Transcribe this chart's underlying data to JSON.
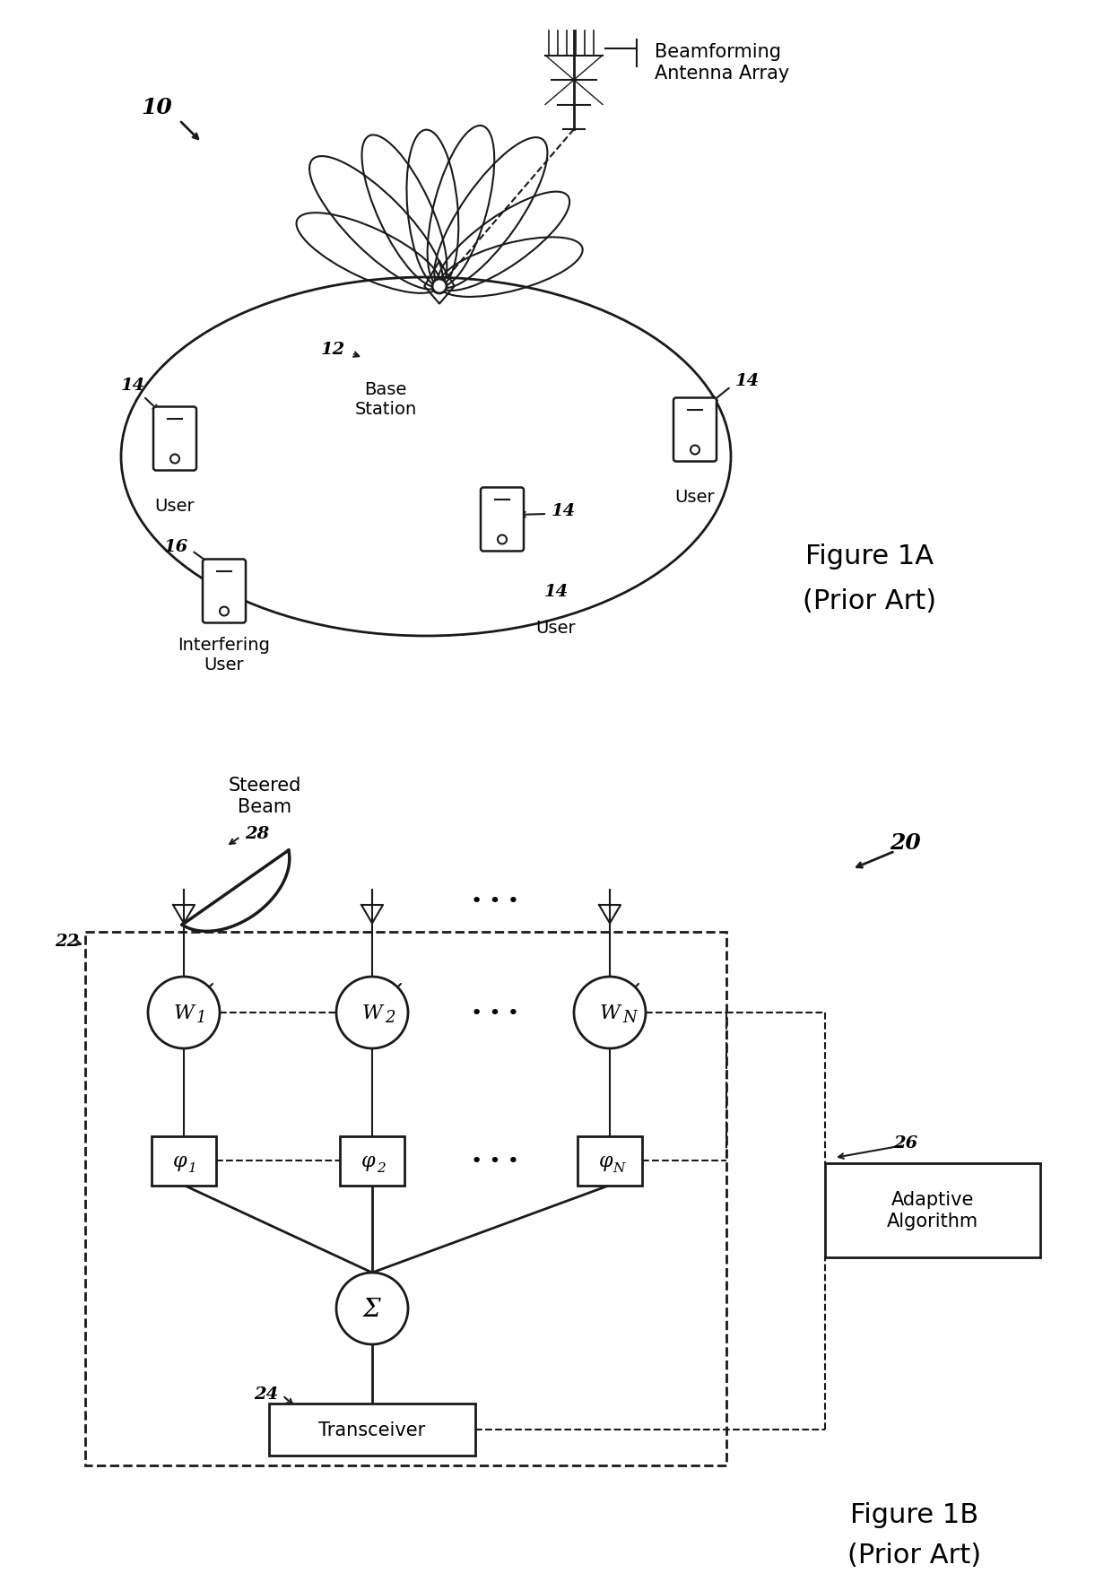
{
  "bg_color": "#ffffff",
  "line_color": "#1a1a1a",
  "fig_width": 12.4,
  "fig_height": 17.65,
  "fig1a_label": "10",
  "fig1a_title": "Figure 1A",
  "fig1a_subtitle": "(Prior Art)",
  "fig1b_title": "Figure 1B",
  "fig1b_subtitle": "(Prior Art)",
  "fig1b_label": "20",
  "label_12": "12",
  "label_14": "14",
  "label_16": "16",
  "label_22": "22",
  "label_24": "24",
  "label_26": "26",
  "label_28": "28",
  "text_base_station": "Base\nStation",
  "text_user": "User",
  "text_interfering_user": "Interfering\nUser",
  "text_beamforming": "Beamforming\nAntenna Array",
  "text_steered_beam": "Steered\nBeam",
  "text_transceiver": "Transceiver",
  "text_adaptive": "Adaptive\nAlgorithm",
  "text_w1": "W",
  "text_w2": "W",
  "text_wn": "W",
  "text_phi1": "φ",
  "text_phi2": "φ",
  "text_phin": "φ",
  "text_sigma": "Σ",
  "text_dots": "⋯"
}
